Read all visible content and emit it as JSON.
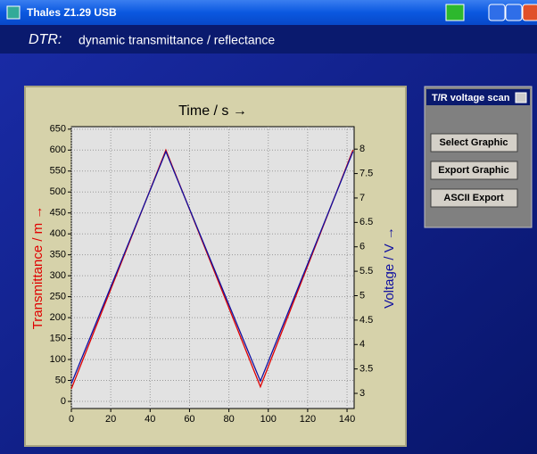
{
  "window": {
    "title": "Thales Z1.29 USB"
  },
  "header": {
    "label": "DTR:",
    "text": "dynamic transmittance / reflectance"
  },
  "panel": {
    "title": "T/R voltage scan",
    "buttons": [
      "Select Graphic",
      "Export Graphic",
      "ASCII Export"
    ]
  },
  "chart_data": {
    "type": "line",
    "x_label": "Time / s →",
    "y_label": "Transmittance / m →",
    "y2_label": "Voltage / V →",
    "x": [
      0,
      48,
      96,
      143
    ],
    "series": [
      {
        "name": "Transmittance",
        "color": "#e00000",
        "values": [
          30,
          600,
          35,
          600
        ]
      },
      {
        "name": "Voltage",
        "color": "#1010a0",
        "axis": "y2",
        "values": [
          3.2,
          7.95,
          3.25,
          7.95
        ]
      }
    ],
    "xlim": [
      0,
      143.6
    ],
    "xticks": [
      0,
      20,
      40,
      60,
      80,
      100,
      120,
      140
    ],
    "ylim": [
      -17,
      656
    ],
    "yticks": [
      0,
      50,
      100,
      150,
      200,
      250,
      300,
      350,
      400,
      450,
      500,
      550,
      600,
      650
    ],
    "y2lim": [
      2.69,
      8.46
    ],
    "y2ticks": [
      3,
      3.5,
      4,
      4.5,
      5,
      5.5,
      6,
      6.5,
      7,
      7.5,
      8
    ],
    "grid": true
  }
}
